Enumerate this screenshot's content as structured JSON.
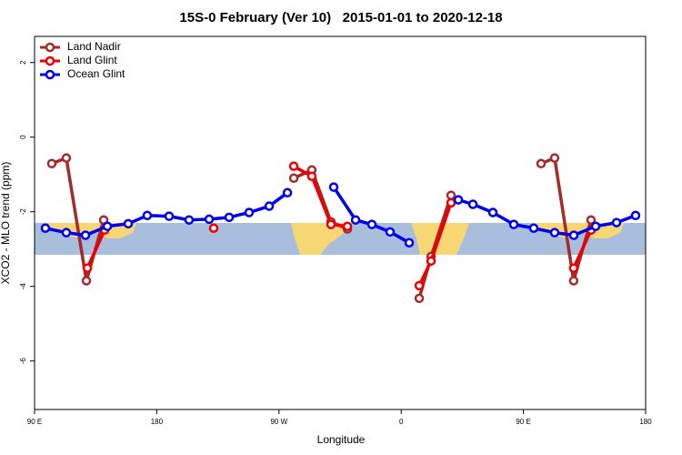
{
  "chart_data": {
    "type": "line",
    "title": "15S-0 February (Ver 10)   2015-01-01 to 2020-12-18",
    "xlabel": "Longitude",
    "ylabel": "XCO2 - MLO trend (ppm)",
    "xlim": [
      90,
      540
    ],
    "ylim": [
      -7.3,
      2.7
    ],
    "xticks": [
      {
        "value": 90,
        "label": "90 E"
      },
      180,
      {
        "value": 270,
        "label": "90 W"
      },
      {
        "value": 360,
        "label": "0"
      },
      {
        "value": 450,
        "label": "90 E"
      },
      {
        "value": 540,
        "label": "180"
      }
    ],
    "yticks": [
      2,
      0,
      -2,
      -4,
      -6
    ],
    "legend": "top-left",
    "series": [
      {
        "name": "Land Nadir",
        "color": "#a52a2a",
        "x": [
          102.7,
          113.4,
          128.2,
          140.9,
          null,
          280.9,
          294.2,
          308.3,
          320.4,
          null,
          373.3,
          382.0,
          396.7,
          null,
          463.0,
          473.0,
          487.0,
          499.8
        ],
        "values": [
          -0.71,
          -0.56,
          -3.85,
          -2.22,
          null,
          -1.1,
          -0.88,
          -2.27,
          -2.46,
          null,
          -4.32,
          -3.2,
          -1.56,
          null,
          -0.71,
          -0.56,
          -3.85,
          -2.22
        ]
      },
      {
        "name": "Land Glint",
        "color": "#ee0000",
        "x": [
          128.9,
          141.6,
          null,
          221.9,
          null,
          280.9,
          294.2,
          308.3,
          320.4,
          null,
          373.3,
          382.0,
          396.7,
          null,
          487.0,
          499.8
        ],
        "values": [
          -3.51,
          -2.49,
          null,
          -2.44,
          null,
          -0.78,
          -1.05,
          -2.34,
          -2.39,
          null,
          -3.98,
          -3.32,
          -1.76,
          null,
          -3.51,
          -2.49
        ]
      },
      {
        "name": "Ocean Glint",
        "color": "#0000ee",
        "x": [
          98.0,
          113.4,
          127.5,
          143.6,
          159.0,
          173.0,
          189.1,
          203.8,
          218.6,
          233.3,
          248.0,
          262.8,
          276.2,
          null,
          310.3,
          326.4,
          338.4,
          351.8,
          365.9,
          null,
          402.1,
          412.8,
          427.5,
          442.9,
          457.6,
          473.0,
          487.1,
          503.2,
          518.6,
          532.6
        ],
        "values": [
          -2.44,
          -2.56,
          -2.63,
          -2.39,
          -2.32,
          -2.1,
          -2.12,
          -2.22,
          -2.2,
          -2.15,
          -2.02,
          -1.85,
          -1.49,
          null,
          -1.34,
          -2.22,
          -2.34,
          -2.54,
          -2.83,
          null,
          -1.68,
          -1.8,
          -2.02,
          -2.34,
          -2.44,
          -2.56,
          -2.63,
          -2.39,
          -2.29,
          -2.1
        ]
      }
    ]
  }
}
